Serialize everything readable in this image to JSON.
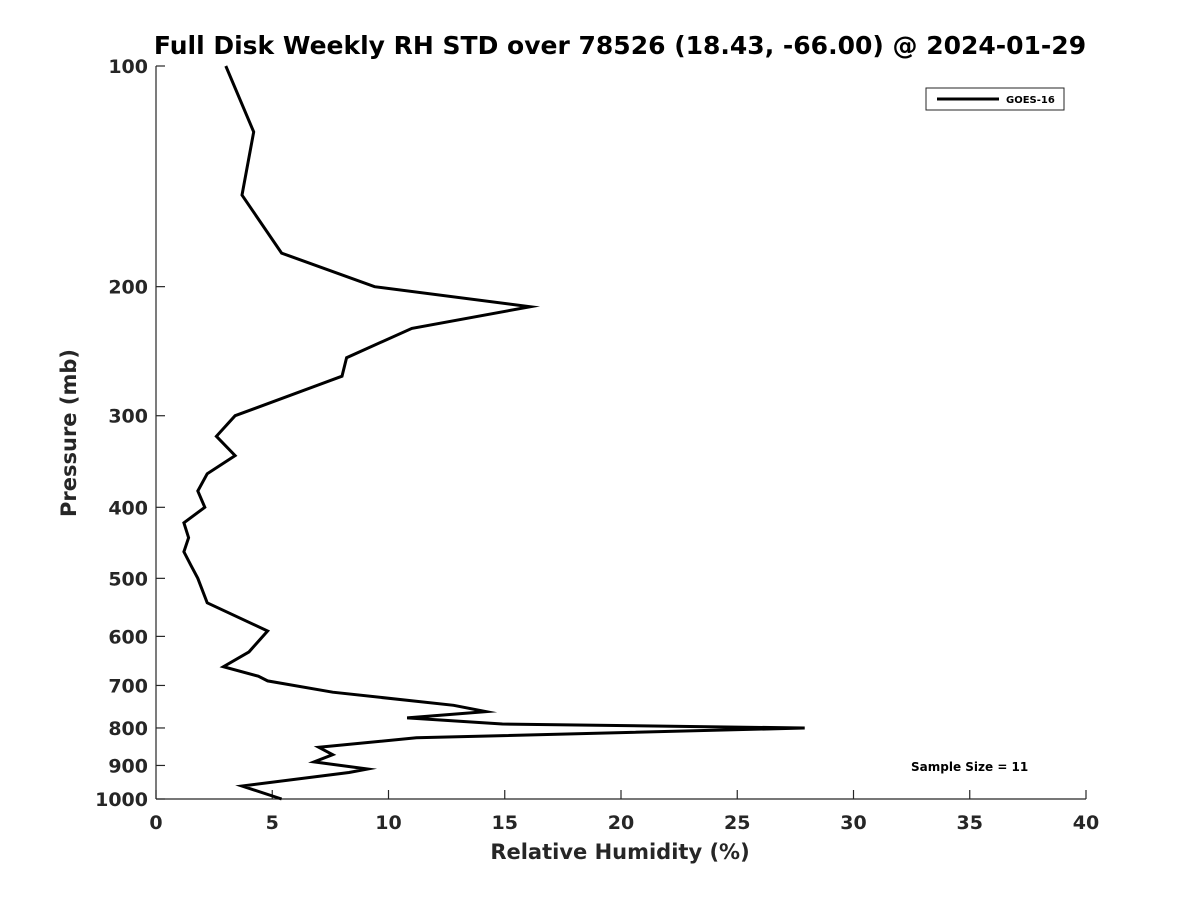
{
  "chart_data": {
    "type": "line",
    "title": "Full Disk Weekly RH STD over 78526 (18.43, -66.00) @ 2024-01-29",
    "xlabel": "Relative Humidity (%)",
    "ylabel": "Pressure (mb)",
    "xlim": [
      0,
      40
    ],
    "ylim": [
      100,
      1000
    ],
    "y_scale": "log",
    "y_reversed": true,
    "grid": false,
    "x_ticks": [
      0,
      5,
      10,
      15,
      20,
      25,
      30,
      35,
      40
    ],
    "y_ticks": [
      100,
      200,
      300,
      400,
      500,
      600,
      700,
      800,
      900,
      1000
    ],
    "legend_position": "top-right",
    "annotation": "Sample Size = 11",
    "series": [
      {
        "name": "GOES-16",
        "color": "#000000",
        "x": [
          3.0,
          4.2,
          3.7,
          5.4,
          9.4,
          16.1,
          11.0,
          8.2,
          8.0,
          3.4,
          2.6,
          3.4,
          2.2,
          1.8,
          2.1,
          1.2,
          1.4,
          1.2,
          1.5,
          1.8,
          2.2,
          4.8,
          4.0,
          2.9,
          4.4,
          4.8,
          7.6,
          12.8,
          14.2,
          10.8,
          14.9,
          27.9,
          11.2,
          7.0,
          7.6,
          6.8,
          9.1,
          8.3,
          3.7,
          5.4
        ],
        "y": [
          100,
          123,
          150,
          180,
          200,
          213,
          228,
          250,
          265,
          300,
          320,
          340,
          360,
          380,
          400,
          420,
          440,
          460,
          480,
          500,
          540,
          590,
          630,
          660,
          680,
          690,
          715,
          745,
          760,
          775,
          790,
          800,
          825,
          850,
          870,
          890,
          910,
          920,
          960,
          1000
        ]
      }
    ]
  }
}
